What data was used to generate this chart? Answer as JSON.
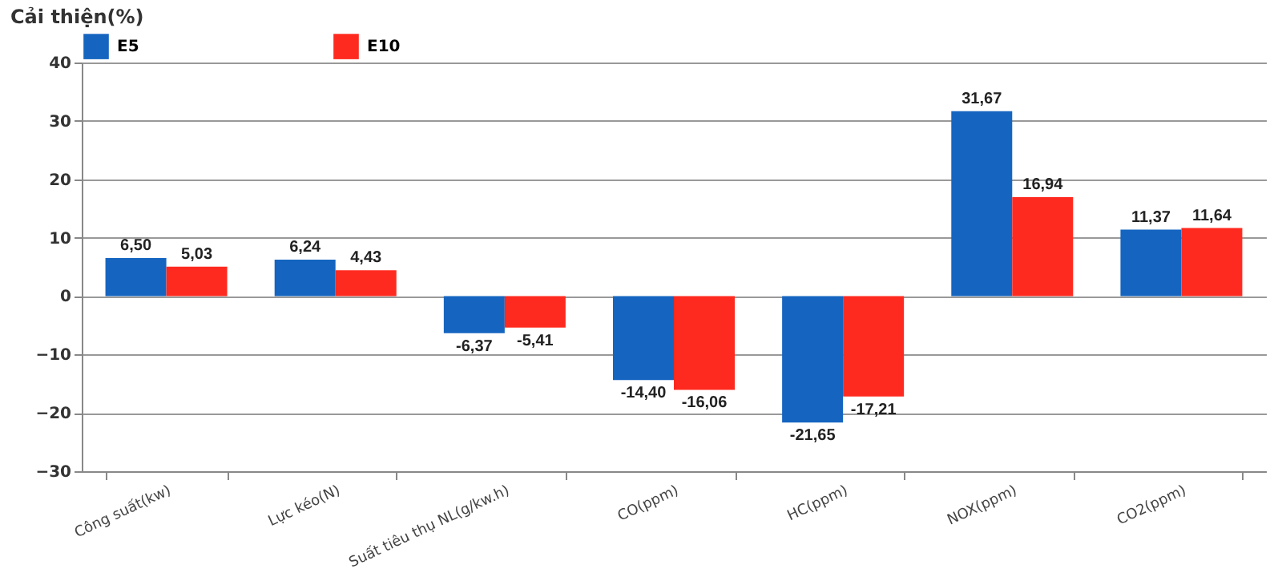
{
  "chart_data": {
    "type": "bar",
    "ylabel": "Cải thiện(%)",
    "categories": [
      "Công suất(kw)",
      "Lực kéo(N)",
      "Suất tiêu thụ NL(g/kw.h)",
      "CO(ppm)",
      "HC(ppm)",
      "NOX(ppm)",
      "CO2(ppm)"
    ],
    "series": [
      {
        "name": "E5",
        "color": "#1565c0",
        "values": [
          6.5,
          6.24,
          -6.37,
          -14.4,
          -21.65,
          31.67,
          11.37
        ],
        "value_labels": [
          "6,50",
          "6,24",
          "-6,37",
          "-14,40",
          "-21,65",
          "31,67",
          "11,37"
        ]
      },
      {
        "name": "E10",
        "color": "#ff2a1f",
        "values": [
          5.03,
          4.43,
          -5.41,
          -16.06,
          -17.21,
          16.94,
          11.64
        ],
        "value_labels": [
          "5,03",
          "4,43",
          "-5,41",
          "-16,06",
          "-17,21",
          "16,94",
          "11,64"
        ]
      }
    ],
    "ylim": [
      -30,
      40
    ],
    "yticks": [
      -30,
      -20,
      -10,
      0,
      10,
      20,
      30,
      40
    ],
    "grid": "y",
    "legend": "top"
  }
}
